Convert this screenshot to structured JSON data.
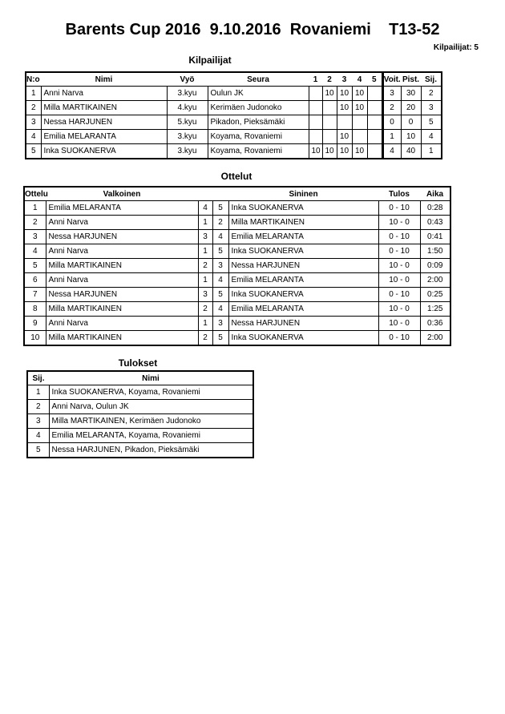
{
  "title": "Barents Cup 2016  9.10.2016  Rovaniemi    T13-52",
  "count_label": "Kilpailijat: 5",
  "competitors": {
    "heading": "Kilpailijat",
    "headers": [
      "N:o",
      "Nimi",
      "Vyö",
      "Seura",
      "1",
      "2",
      "3",
      "4",
      "5",
      "Voit.",
      "Pist.",
      "Sij."
    ],
    "rows": [
      [
        "1",
        "Anni Narva",
        "3.kyu",
        "Oulun JK",
        "",
        "10",
        "10",
        "10",
        "",
        "3",
        "30",
        "2"
      ],
      [
        "2",
        "Milla MARTIKAINEN",
        "4.kyu",
        "Kerimäen Judonoko",
        "",
        "",
        "10",
        "10",
        "",
        "2",
        "20",
        "3"
      ],
      [
        "3",
        "Nessa HARJUNEN",
        "5.kyu",
        "Pikadon, Pieksämäki",
        "",
        "",
        "",
        "",
        "",
        "0",
        "0",
        "5"
      ],
      [
        "4",
        "Emilia MELARANTA",
        "3.kyu",
        "Koyama, Rovaniemi",
        "",
        "",
        "10",
        "",
        "",
        "1",
        "10",
        "4"
      ],
      [
        "5",
        "Inka SUOKANERVA",
        "3.kyu",
        "Koyama, Rovaniemi",
        "10",
        "10",
        "10",
        "10",
        "",
        "4",
        "40",
        "1"
      ]
    ]
  },
  "matches": {
    "heading": "Ottelut",
    "headers": [
      "Ottelu",
      "Valkoinen",
      "",
      "",
      "Sininen",
      "Tulos",
      "Aika"
    ],
    "rows": [
      [
        "1",
        "Emilia MELARANTA",
        "4",
        "5",
        "Inka SUOKANERVA",
        "0 - 10",
        "0:28"
      ],
      [
        "2",
        "Anni Narva",
        "1",
        "2",
        "Milla MARTIKAINEN",
        "10 - 0",
        "0:43"
      ],
      [
        "3",
        "Nessa HARJUNEN",
        "3",
        "4",
        "Emilia MELARANTA",
        "0 - 10",
        "0:41"
      ],
      [
        "4",
        "Anni Narva",
        "1",
        "5",
        "Inka SUOKANERVA",
        "0 - 10",
        "1:50"
      ],
      [
        "5",
        "Milla MARTIKAINEN",
        "2",
        "3",
        "Nessa HARJUNEN",
        "10 - 0",
        "0:09"
      ],
      [
        "6",
        "Anni Narva",
        "1",
        "4",
        "Emilia MELARANTA",
        "10 - 0",
        "2:00"
      ],
      [
        "7",
        "Nessa HARJUNEN",
        "3",
        "5",
        "Inka SUOKANERVA",
        "0 - 10",
        "0:25"
      ],
      [
        "8",
        "Milla MARTIKAINEN",
        "2",
        "4",
        "Emilia MELARANTA",
        "10 - 0",
        "1:25"
      ],
      [
        "9",
        "Anni Narva",
        "1",
        "3",
        "Nessa HARJUNEN",
        "10 - 0",
        "0:36"
      ],
      [
        "10",
        "Milla MARTIKAINEN",
        "2",
        "5",
        "Inka SUOKANERVA",
        "0 - 10",
        "2:00"
      ]
    ]
  },
  "results": {
    "heading": "Tulokset",
    "headers": [
      "Sij.",
      "Nimi"
    ],
    "rows": [
      [
        "1",
        "Inka SUOKANERVA, Koyama, Rovaniemi"
      ],
      [
        "2",
        "Anni Narva, Oulun JK"
      ],
      [
        "3",
        "Milla MARTIKAINEN, Kerimäen Judonoko"
      ],
      [
        "4",
        "Emilia MELARANTA, Koyama, Rovaniemi"
      ],
      [
        "5",
        "Nessa HARJUNEN, Pikadon, Pieksämäki"
      ]
    ]
  }
}
